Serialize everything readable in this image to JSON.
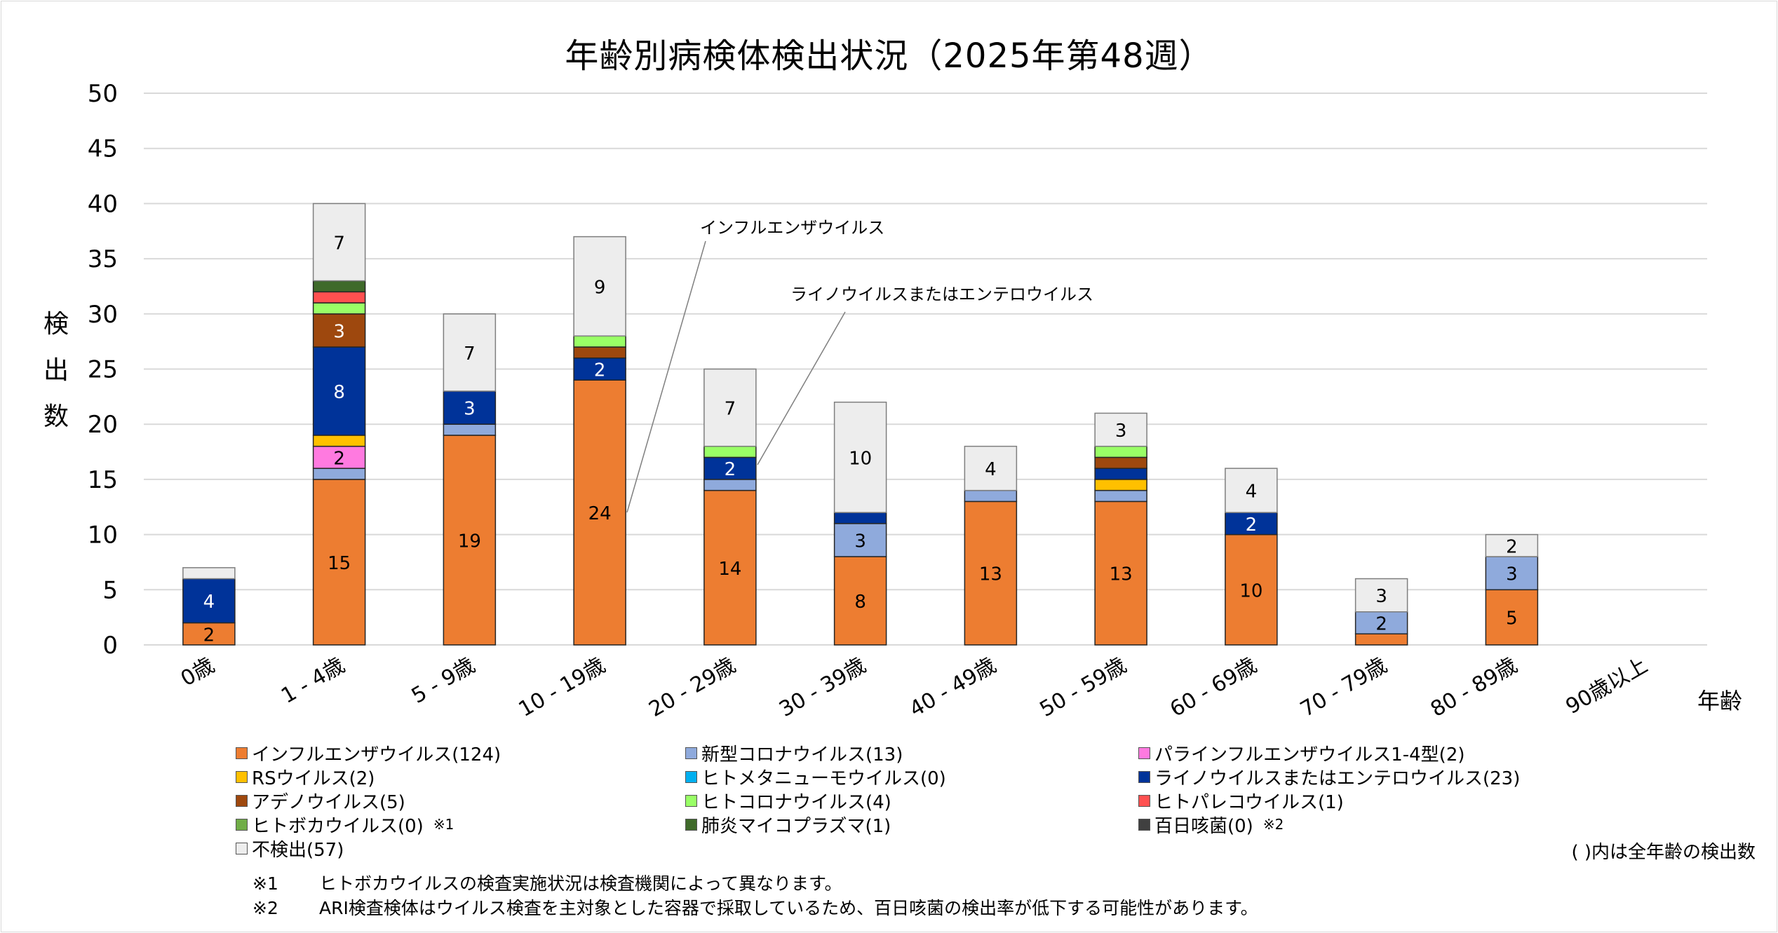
{
  "chart_data": {
    "type": "bar",
    "stacked": true,
    "title": "年齢別病検体検出状況（2025年第48週）",
    "xlabel": "年齢",
    "ylabel": "検出数",
    "ylim": [
      0,
      50
    ],
    "yticks": [
      0,
      5,
      10,
      15,
      20,
      25,
      30,
      35,
      40,
      45,
      50
    ],
    "grid": true,
    "legend_position": "bottom",
    "categories": [
      "0歳",
      "1 - 4歳",
      "5 - 9歳",
      "10 - 19歳",
      "20 - 29歳",
      "30 - 39歳",
      "40 - 49歳",
      "50 - 59歳",
      "60 - 69歳",
      "70 - 79歳",
      "80 - 89歳",
      "90歳以上"
    ],
    "series": [
      {
        "name": "インフルエンザウイルス",
        "total": 124,
        "color": "#ED7D31",
        "label_color": "#000000",
        "values": [
          2,
          15,
          19,
          24,
          14,
          8,
          13,
          13,
          10,
          1,
          5,
          0
        ]
      },
      {
        "name": "新型コロナウイルス",
        "total": 13,
        "color": "#8FAADC",
        "label_color": "#000000",
        "values": [
          0,
          1,
          1,
          0,
          1,
          3,
          1,
          1,
          0,
          2,
          3,
          0
        ]
      },
      {
        "name": "パラインフルエンザウイルス1-4型",
        "total": 2,
        "color": "#FF7AE0",
        "label_color": "#000000",
        "values": [
          0,
          2,
          0,
          0,
          0,
          0,
          0,
          0,
          0,
          0,
          0,
          0
        ]
      },
      {
        "name": "RSウイルス",
        "total": 2,
        "color": "#FFC000",
        "label_color": "#000000",
        "values": [
          0,
          1,
          0,
          0,
          0,
          0,
          0,
          1,
          0,
          0,
          0,
          0
        ]
      },
      {
        "name": "ヒトメタニューモウイルス",
        "total": 0,
        "color": "#00B0F0",
        "label_color": "#000000",
        "values": [
          0,
          0,
          0,
          0,
          0,
          0,
          0,
          0,
          0,
          0,
          0,
          0
        ]
      },
      {
        "name": "ライノウイルスまたはエンテロウイルス",
        "total": 23,
        "color": "#003399",
        "label_color": "#ffffff",
        "values": [
          4,
          8,
          3,
          2,
          2,
          1,
          0,
          1,
          2,
          0,
          0,
          0
        ]
      },
      {
        "name": "アデノウイルス",
        "total": 5,
        "color": "#9E480E",
        "label_color": "#ffffff",
        "values": [
          0,
          3,
          0,
          1,
          0,
          0,
          0,
          1,
          0,
          0,
          0,
          0
        ]
      },
      {
        "name": "ヒトコロナウイルス",
        "total": 4,
        "color": "#99FF66",
        "label_color": "#000000",
        "values": [
          0,
          1,
          0,
          1,
          1,
          0,
          0,
          1,
          0,
          0,
          0,
          0
        ]
      },
      {
        "name": "ヒトパレコウイルス",
        "total": 1,
        "color": "#FF5050",
        "label_color": "#000000",
        "values": [
          0,
          1,
          0,
          0,
          0,
          0,
          0,
          0,
          0,
          0,
          0,
          0
        ]
      },
      {
        "name": "ヒトボカウイルス",
        "total": 0,
        "color": "#70AD47",
        "label_color": "#000000",
        "note": "※1",
        "values": [
          0,
          0,
          0,
          0,
          0,
          0,
          0,
          0,
          0,
          0,
          0,
          0
        ]
      },
      {
        "name": "肺炎マイコプラズマ",
        "total": 1,
        "color": "#3F6A2A",
        "label_color": "#ffffff",
        "values": [
          0,
          1,
          0,
          0,
          0,
          0,
          0,
          0,
          0,
          0,
          0,
          0
        ]
      },
      {
        "name": "百日咳菌",
        "total": 0,
        "color": "#404040",
        "label_color": "#ffffff",
        "note": "※2",
        "values": [
          0,
          0,
          0,
          0,
          0,
          0,
          0,
          0,
          0,
          0,
          0,
          0
        ]
      },
      {
        "name": "不検出",
        "total": 57,
        "color": "#EDEDED",
        "label_color": "#000000",
        "values": [
          1,
          7,
          7,
          9,
          7,
          10,
          4,
          3,
          4,
          3,
          2,
          0
        ]
      }
    ],
    "data_label_min": 2,
    "legend_order": [
      0,
      1,
      2,
      3,
      4,
      5,
      6,
      7,
      8,
      9,
      10,
      11,
      12
    ],
    "annotations": [
      {
        "text": "インフルエンザウイルス",
        "points_to": {
          "category": "10 - 19歳",
          "series": "インフルエンザウイルス"
        }
      },
      {
        "text": "ライノウイルスまたはエンテロウイルス",
        "points_to": {
          "category": "20 - 29歳",
          "series": "ライノウイルスまたはエンテロウイルス"
        }
      }
    ]
  },
  "legend_note": "( )内は全年齢の検出数",
  "footnotes": [
    {
      "mark": "※1",
      "text": "ヒトボカウイルスの検査実施状況は検査機関によって異なります。"
    },
    {
      "mark": "※2",
      "text": "ARI検査検体はウイルス検査を主対象とした容器で採取しているため、百日咳菌の検出率が低下する可能性があります。"
    }
  ]
}
